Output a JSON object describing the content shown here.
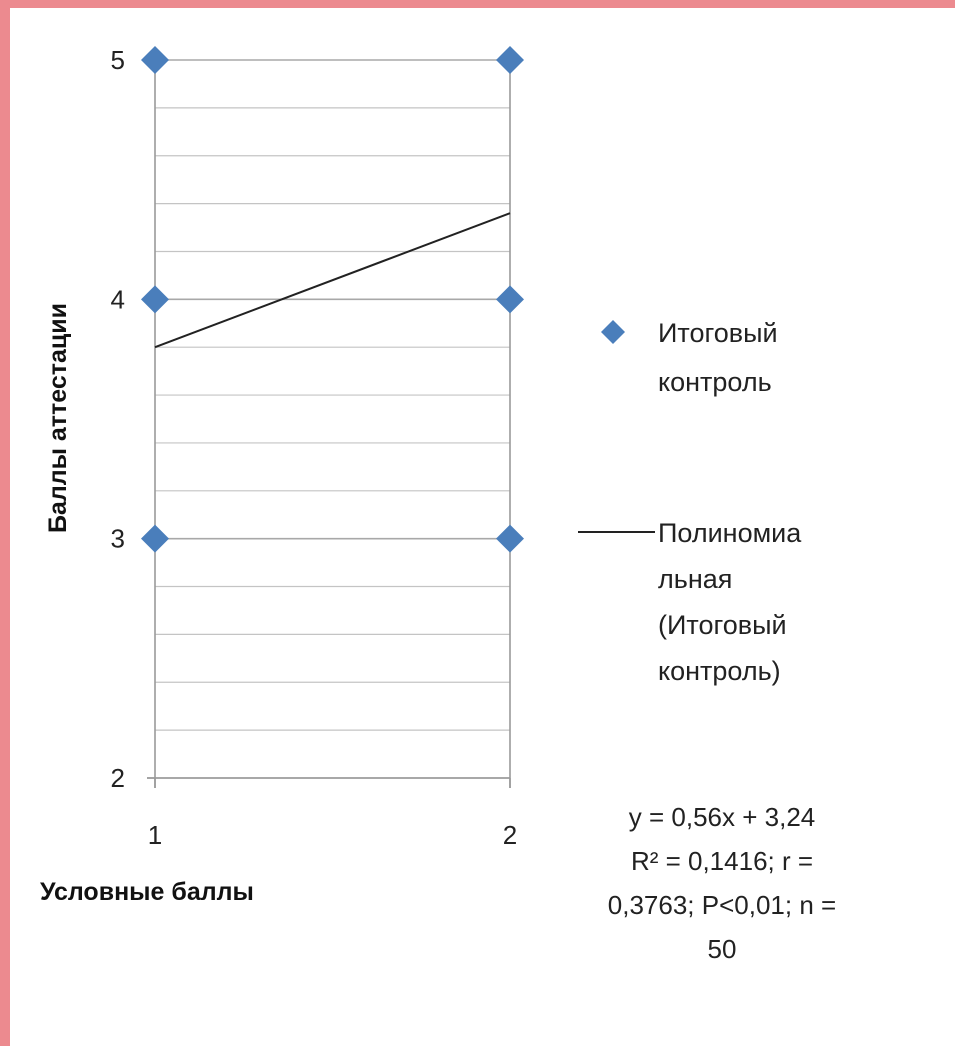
{
  "chart_data": {
    "type": "scatter",
    "title": "",
    "xlabel": "Условные баллы",
    "ylabel": "Баллы аттестации",
    "xlim": [
      1,
      2
    ],
    "ylim": [
      2,
      5
    ],
    "x_ticks": [
      "1",
      "2"
    ],
    "y_ticks": [
      "2",
      "3",
      "4",
      "5"
    ],
    "grid": "horizontal minor every 0.2",
    "legend_position": "right",
    "series": [
      {
        "name": "Итоговый контроль",
        "kind": "scatter",
        "marker": "diamond",
        "color": "#4a7ebb",
        "points": [
          [
            1,
            3
          ],
          [
            1,
            4
          ],
          [
            1,
            5
          ],
          [
            2,
            3
          ],
          [
            2,
            4
          ],
          [
            2,
            5
          ]
        ]
      },
      {
        "name": "Полиномиальная (Итоговый контроль)",
        "kind": "trendline",
        "color": "#222222",
        "points": [
          [
            1,
            3.8
          ],
          [
            2,
            4.36
          ]
        ]
      }
    ],
    "legend": [
      {
        "lines": [
          "Итоговый",
          "контроль"
        ]
      },
      {
        "lines": [
          "Полиномиа",
          "льная",
          "(Итоговый",
          "контроль)"
        ]
      }
    ],
    "annotation": [
      "y = 0,56x + 3,24",
      "R² = 0,1416;  r =",
      "0,3763;  P<0,01; n =",
      "50"
    ]
  }
}
